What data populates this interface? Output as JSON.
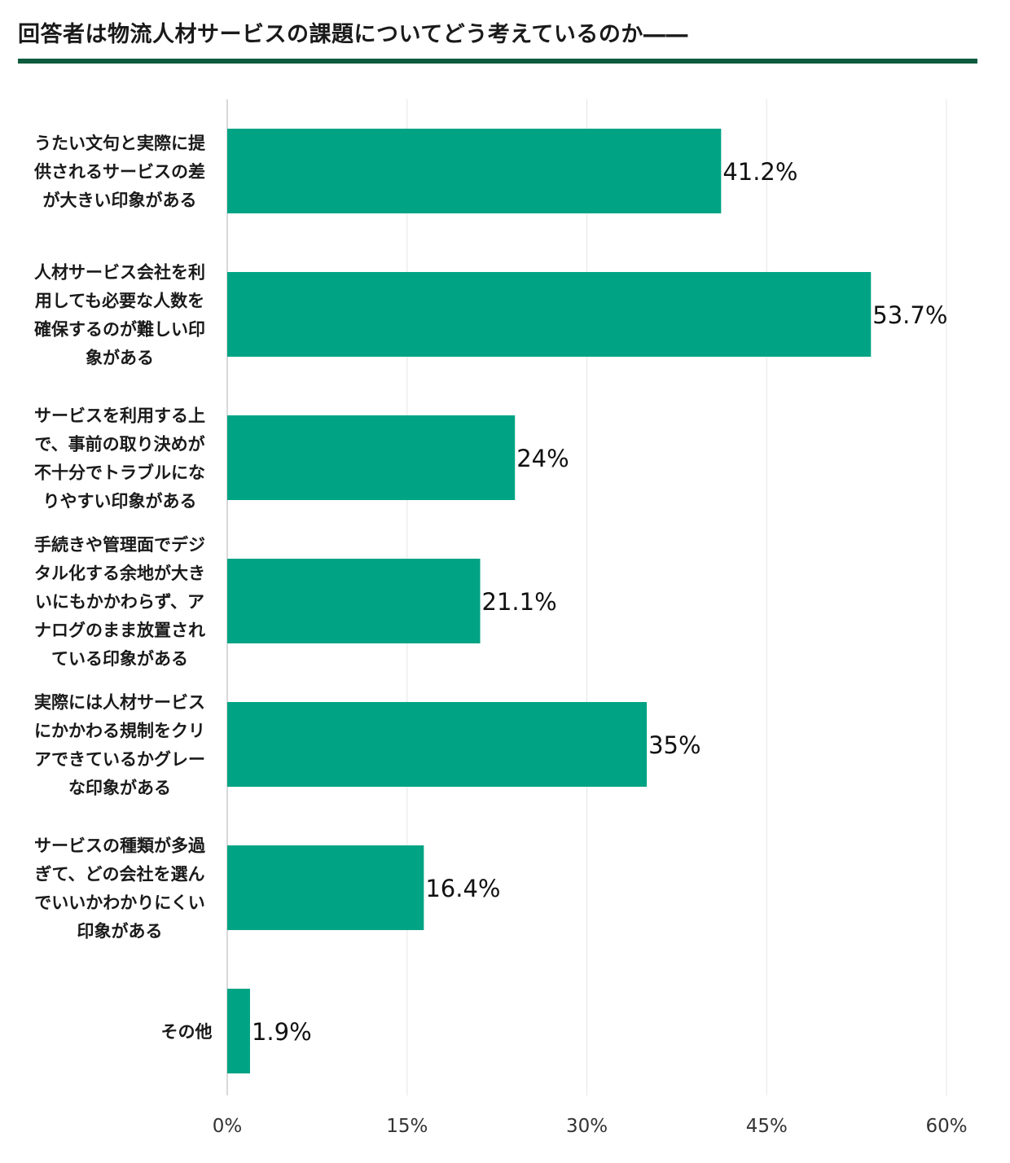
{
  "header": {
    "title": "回答者は物流人材サービスの課題についてどう考えているのか――"
  },
  "colors": {
    "bar": "#00a383",
    "title_rule": "#0d5b3e",
    "grid": "#e6e6e6",
    "axis": "#cccccc"
  },
  "chart_data": {
    "type": "bar",
    "orientation": "horizontal",
    "categories": [
      [
        "うたい文句と実際に提",
        "供されるサービスの差",
        "が大きい印象がある"
      ],
      [
        "人材サービス会社を利",
        "用しても必要な人数を",
        "確保するのが難しい印",
        "象がある"
      ],
      [
        "サービスを利用する上",
        "で、事前の取り決めが",
        "不十分でトラブルにな",
        "りやすい印象がある"
      ],
      [
        "手続きや管理面でデジ",
        "タル化する余地が大き",
        "いにもかかわらず、ア",
        "ナログのまま放置され",
        "ている印象がある"
      ],
      [
        "実際には人材サービス",
        "にかかわる規制をクリ",
        "アできているかグレー",
        "な印象がある"
      ],
      [
        "サービスの種類が多過",
        "ぎて、どの会社を選ん",
        "でいいかわかりにくい",
        "印象がある"
      ],
      [
        "その他"
      ]
    ],
    "values": [
      41.2,
      53.7,
      24,
      21.1,
      35,
      16.4,
      1.9
    ],
    "value_labels": [
      "41.2%",
      "53.7%",
      "24%",
      "21.1%",
      "35%",
      "16.4%",
      "1.9%"
    ],
    "xlim": [
      0,
      60
    ],
    "xticks": [
      0,
      15,
      30,
      45,
      60
    ],
    "xtick_labels": [
      "0%",
      "15%",
      "30%",
      "45%",
      "60%"
    ],
    "grid": true,
    "legend": false
  }
}
